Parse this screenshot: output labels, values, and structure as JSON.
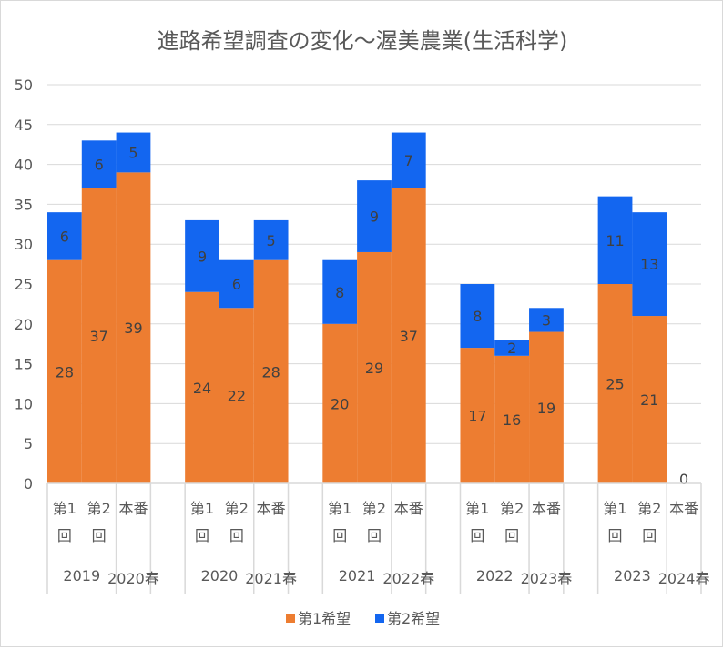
{
  "chart_data": {
    "type": "bar",
    "stacked": true,
    "title": "進路希望調査の変化～渥美農業(生活科学)",
    "ylim": [
      0,
      50
    ],
    "yticks": [
      0,
      5,
      10,
      15,
      20,
      25,
      30,
      35,
      40,
      45,
      50
    ],
    "grid": true,
    "legend_position": "bottom",
    "groups": [
      {
        "year": "2019",
        "spring": "2020春"
      },
      {
        "year": "2020",
        "spring": "2021春"
      },
      {
        "year": "2021",
        "spring": "2022春"
      },
      {
        "year": "2022",
        "spring": "2023春"
      },
      {
        "year": "2023",
        "spring": "2024春"
      }
    ],
    "categories": [
      {
        "line1": "第1",
        "line2": "回"
      },
      {
        "line1": "第2",
        "line2": "回"
      },
      {
        "line1": "本番",
        "line2": ""
      }
    ],
    "series": [
      {
        "name": "第1希望",
        "color": "#ED7D31",
        "values": [
          [
            28,
            37,
            39
          ],
          [
            24,
            22,
            28
          ],
          [
            20,
            29,
            37
          ],
          [
            17,
            16,
            19
          ],
          [
            25,
            21,
            0
          ]
        ]
      },
      {
        "name": "第2希望",
        "color": "#1366F0",
        "values": [
          [
            6,
            6,
            5
          ],
          [
            9,
            6,
            5
          ],
          [
            8,
            9,
            7
          ],
          [
            8,
            2,
            3
          ],
          [
            11,
            13,
            null
          ]
        ]
      }
    ]
  }
}
